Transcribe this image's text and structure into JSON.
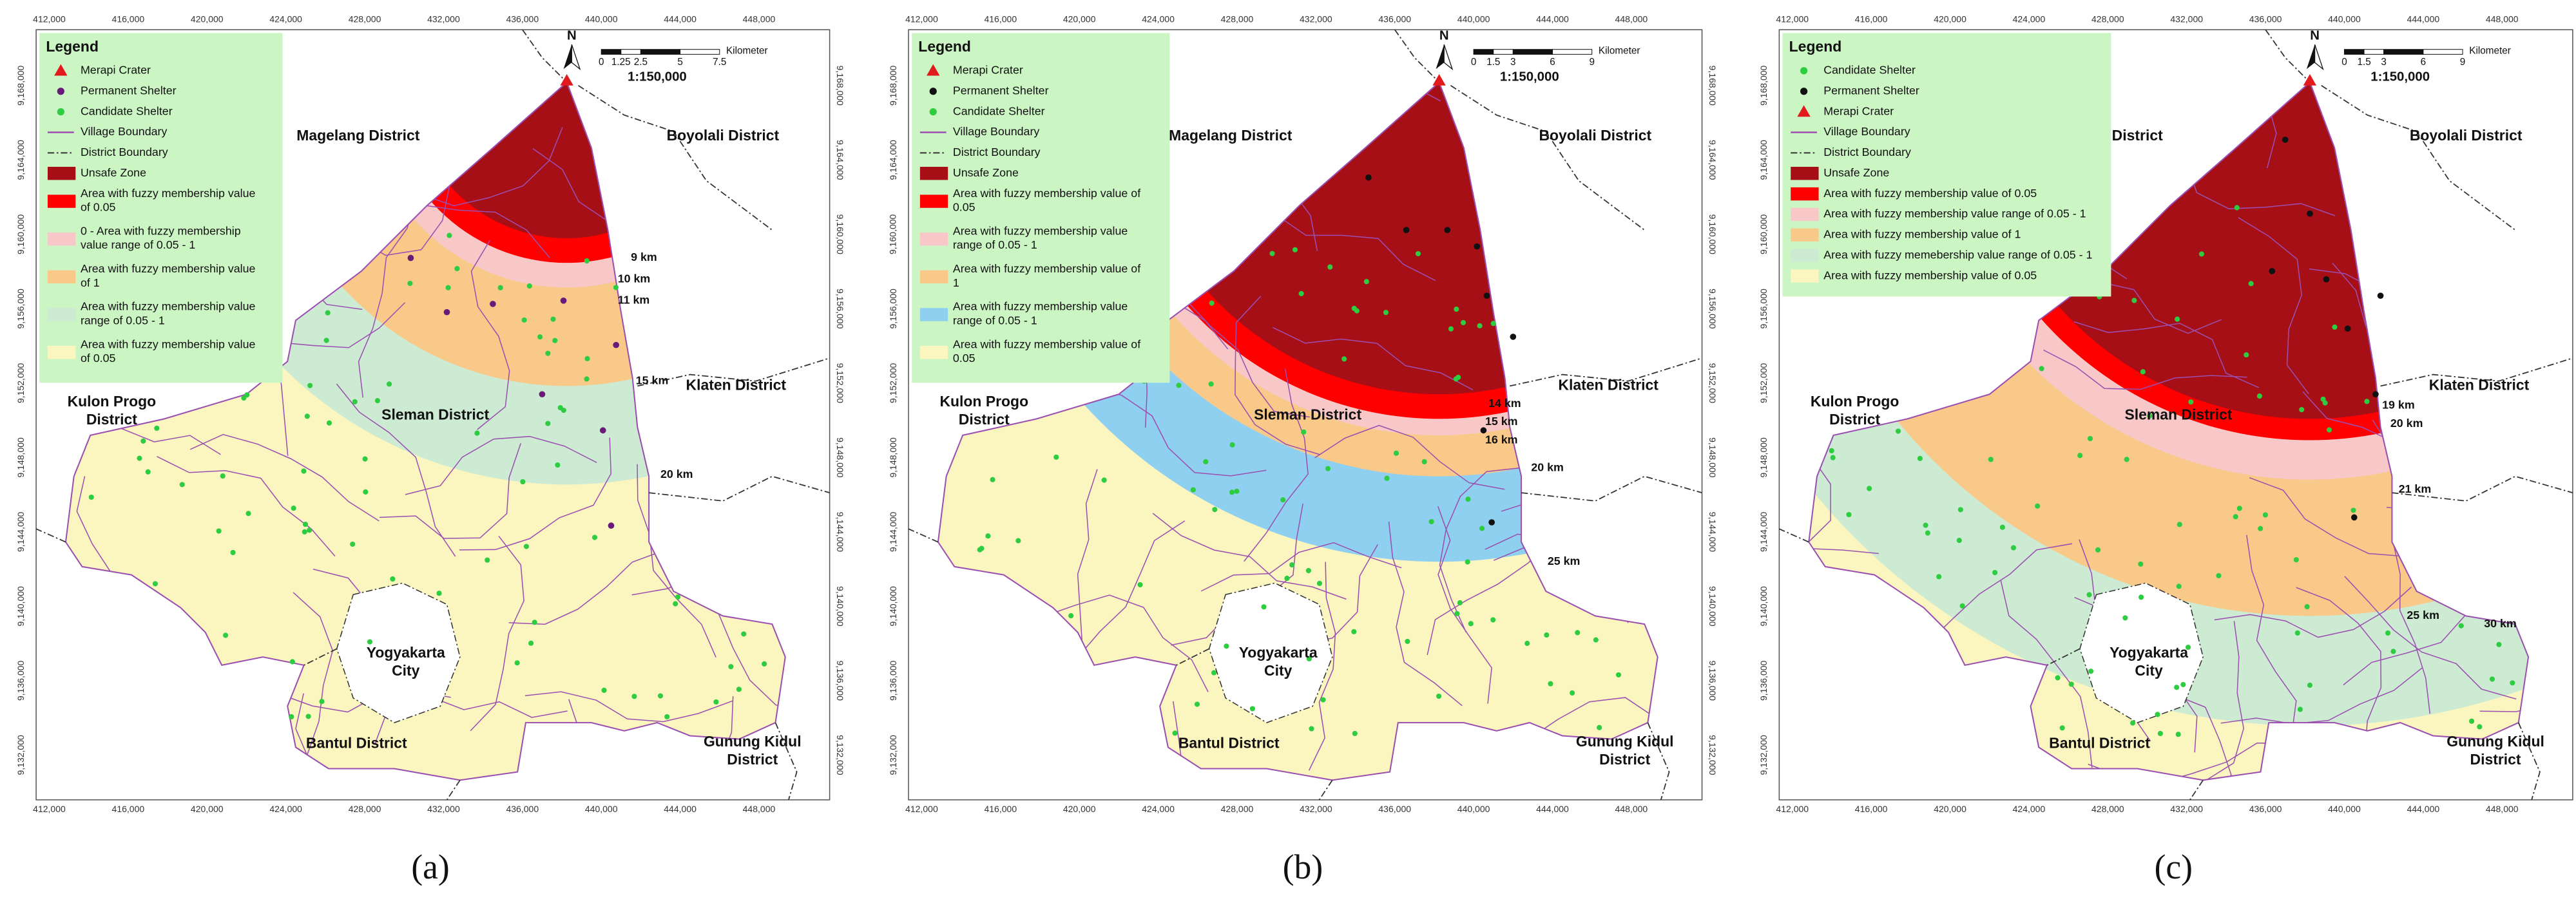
{
  "map_grid": {
    "x_labels": [
      "412,000",
      "416,000",
      "420,000",
      "424,000",
      "428,000",
      "432,000",
      "436,000",
      "440,000",
      "444,000",
      "448,000"
    ],
    "y_labels": [
      "9,168,000",
      "9,164,000",
      "9,160,000",
      "9,156,000",
      "9,152,000",
      "9,148,000",
      "9,144,000",
      "9,140,000",
      "9,136,000",
      "9,132,000"
    ]
  },
  "north": "N",
  "districts": [
    [
      "Magelang District"
    ],
    [
      "Boyolali District"
    ],
    [
      "Kulon Progo",
      "District"
    ],
    [
      "Sleman District"
    ],
    [
      "Klaten District"
    ],
    [
      "Yogyakarta",
      "City"
    ],
    [
      "Bantul District"
    ],
    [
      "Gunung Kidul",
      "District"
    ]
  ],
  "panels": [
    {
      "label": "(a)",
      "legend": {
        "title": "Legend",
        "items": [
          {
            "label": [
              "Merapi Crater"
            ],
            "symbol": "triangle",
            "color": "#e31a1c"
          },
          {
            "label": [
              "Permanent Shelter"
            ],
            "symbol": "circle",
            "color": "#6a1b7a"
          },
          {
            "label": [
              "Candidate Shelter"
            ],
            "symbol": "circle",
            "color": "#2ecc40"
          },
          {
            "label": [
              "Village Boundary"
            ],
            "symbol": "line",
            "color": "#9b4fb0"
          },
          {
            "label": [
              "District Boundary"
            ],
            "symbol": "dashdot",
            "color": "#333333"
          },
          {
            "label": [
              "Unsafe Zone"
            ],
            "symbol": "rect",
            "color": "#a50f15"
          },
          {
            "label": [
              "Area with fuzzy membership value",
              "of 0.05"
            ],
            "symbol": "rect",
            "color": "#ff0000"
          },
          {
            "label": [
              "0 - Area with fuzzy membership",
              "value range of 0.05 - 1"
            ],
            "symbol": "rect",
            "color": "#f8c8c8"
          },
          {
            "label": [
              "Area with fuzzy membership value",
              "of 1"
            ],
            "symbol": "rect",
            "color": "#f9c98a"
          },
          {
            "label": [
              "Area with fuzzy membership value",
              "range of 0.05 - 1"
            ],
            "symbol": "rect",
            "color": "#cdebd3"
          },
          {
            "label": [
              "Area with fuzzy membership value",
              "of 0.05"
            ],
            "symbol": "rect",
            "color": "#fbf6c0"
          }
        ]
      },
      "scale": {
        "unit": "Kilometer",
        "ticks": [
          "0",
          "1.25",
          "2.5",
          "5",
          "7.5"
        ],
        "ratio": "1:150,000"
      },
      "distance_labels": [
        "9 km",
        "10 km",
        "11 km",
        "15 km",
        "20 km"
      ]
    },
    {
      "label": "(b)",
      "legend": {
        "title": "Legend",
        "items": [
          {
            "label": [
              "Merapi Crater"
            ],
            "symbol": "triangle",
            "color": "#e31a1c"
          },
          {
            "label": [
              "Permanent Shelter"
            ],
            "symbol": "circle",
            "color": "#111111"
          },
          {
            "label": [
              "Candidate Shelter"
            ],
            "symbol": "circle",
            "color": "#2ecc40"
          },
          {
            "label": [
              "Village Boundary"
            ],
            "symbol": "line",
            "color": "#9b4fb0"
          },
          {
            "label": [
              "District Boundary"
            ],
            "symbol": "dashdot",
            "color": "#333333"
          },
          {
            "label": [
              "Unsafe Zone"
            ],
            "symbol": "rect",
            "color": "#a50f15"
          },
          {
            "label": [
              "Area with fuzzy membership value of",
              "0.05"
            ],
            "symbol": "rect",
            "color": "#ff0000"
          },
          {
            "label": [
              "Area with fuzzy membership value",
              "range of 0.05 - 1"
            ],
            "symbol": "rect",
            "color": "#f8c8c8"
          },
          {
            "label": [
              "Area with fuzzy membership value of",
              "1"
            ],
            "symbol": "rect",
            "color": "#f9c98a"
          },
          {
            "label": [
              "Area with fuzzy membership value",
              "range of 0.05 - 1"
            ],
            "symbol": "rect",
            "color": "#8fd0f0"
          },
          {
            "label": [
              "Area with fuzzy membership value of",
              "0.05"
            ],
            "symbol": "rect",
            "color": "#fbf6c0"
          }
        ]
      },
      "scale": {
        "unit": "Kilometer",
        "ticks": [
          "0",
          "1.5",
          "3",
          "6",
          "9"
        ],
        "ratio": "1:150,000"
      },
      "distance_labels": [
        "14 km",
        "15 km",
        "16 km",
        "20 km",
        "25 km"
      ]
    },
    {
      "label": "(c)",
      "legend": {
        "title": "Legend",
        "items": [
          {
            "label": [
              "Candidate Shelter"
            ],
            "symbol": "circle",
            "color": "#2ecc40"
          },
          {
            "label": [
              "Permanent Shelter"
            ],
            "symbol": "circle",
            "color": "#111111"
          },
          {
            "label": [
              "Merapi Crater"
            ],
            "symbol": "triangle",
            "color": "#e31a1c"
          },
          {
            "label": [
              "Village Boundary"
            ],
            "symbol": "line",
            "color": "#9b4fb0"
          },
          {
            "label": [
              "District Boundary"
            ],
            "symbol": "dashdot",
            "color": "#333333"
          },
          {
            "label": [
              "Unsafe Zone"
            ],
            "symbol": "rect",
            "color": "#a50f15"
          },
          {
            "label": [
              "Area with fuzzy membership value of 0.05"
            ],
            "symbol": "rect",
            "color": "#ff0000"
          },
          {
            "label": [
              "Area with fuzzy membership value range of 0.05 - 1"
            ],
            "symbol": "rect",
            "color": "#f8c8c8"
          },
          {
            "label": [
              "Area with fuzzy membership value of 1"
            ],
            "symbol": "rect",
            "color": "#f9c98a"
          },
          {
            "label": [
              "Area with fuzzy memebership value range of 0.05 - 1"
            ],
            "symbol": "rect",
            "color": "#cdebd3"
          },
          {
            "label": [
              "Area with fuzzy membership value of 0.05"
            ],
            "symbol": "rect",
            "color": "#fbf6c0"
          }
        ]
      },
      "scale": {
        "unit": "Kilometer",
        "ticks": [
          "0",
          "1.5",
          "3",
          "6",
          "9"
        ],
        "ratio": "1:150,000"
      },
      "distance_labels": [
        "19 km",
        "20 km",
        "21 km",
        "25 km",
        "30 km"
      ]
    }
  ]
}
